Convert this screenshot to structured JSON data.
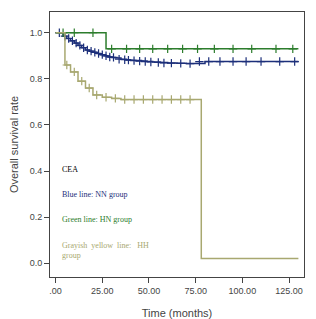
{
  "chart_data": {
    "type": "line",
    "xlabel": "Time (months)",
    "ylabel": "Overall survival rate",
    "xlim": [
      -3,
      133
    ],
    "ylim": [
      -0.06,
      1.09
    ],
    "xticks": [
      {
        "value": 0,
        "label": ".00"
      },
      {
        "value": 25,
        "label": "25.00"
      },
      {
        "value": 50,
        "label": "50.00"
      },
      {
        "value": 75,
        "label": "75.00"
      },
      {
        "value": 100,
        "label": "100.00"
      },
      {
        "value": 125,
        "label": "125.00"
      }
    ],
    "yticks": [
      {
        "value": 0.0,
        "label": "0.0"
      },
      0.2,
      0.4,
      0.6,
      0.8,
      {
        "value": 1.0,
        "label": "1.0"
      }
    ],
    "grid": false,
    "series": [
      {
        "type": "line",
        "line_style": "step",
        "color": "#1c2f7a",
        "x": [
          0,
          4,
          6,
          8,
          10,
          12,
          14,
          16,
          18,
          20,
          22,
          24,
          26,
          28,
          30,
          32,
          35,
          38,
          40,
          43,
          46,
          49,
          52,
          56,
          60,
          65,
          70,
          75,
          80,
          130
        ],
        "values": [
          1.0,
          0.985,
          0.975,
          0.965,
          0.955,
          0.945,
          0.935,
          0.925,
          0.92,
          0.915,
          0.91,
          0.905,
          0.9,
          0.895,
          0.893,
          0.89,
          0.885,
          0.883,
          0.881,
          0.879,
          0.877,
          0.875,
          0.873,
          0.871,
          0.869,
          0.868,
          0.867,
          0.866,
          0.875,
          0.875
        ]
      },
      {
        "type": "scatter",
        "marker": "cross",
        "color": "#1c2f7a",
        "x": [
          2,
          5,
          7,
          9,
          11,
          13,
          15,
          17,
          19,
          21,
          23,
          25,
          27,
          29,
          31,
          34,
          37,
          39,
          42,
          45,
          48,
          51,
          55,
          58,
          62,
          67,
          72,
          77,
          82,
          88,
          95,
          102,
          110,
          120,
          128
        ],
        "values": [
          1.0,
          0.985,
          0.975,
          0.965,
          0.955,
          0.945,
          0.935,
          0.925,
          0.92,
          0.915,
          0.91,
          0.905,
          0.9,
          0.895,
          0.893,
          0.885,
          0.883,
          0.881,
          0.879,
          0.877,
          0.875,
          0.873,
          0.871,
          0.869,
          0.868,
          0.867,
          0.866,
          0.875,
          0.875,
          0.875,
          0.875,
          0.875,
          0.875,
          0.875,
          0.875
        ]
      },
      {
        "type": "line",
        "line_style": "step",
        "color": "#2d7d2d",
        "x": [
          0,
          7,
          27,
          130
        ],
        "values": [
          1.0,
          1.0,
          0.93,
          0.93
        ]
      },
      {
        "type": "scatter",
        "marker": "cross",
        "color": "#2d7d2d",
        "x": [
          4,
          10,
          20,
          30,
          38,
          45,
          52,
          60,
          68,
          76,
          85,
          95,
          105,
          118,
          127
        ],
        "values": [
          1.0,
          1.0,
          1.0,
          0.93,
          0.93,
          0.93,
          0.93,
          0.93,
          0.93,
          0.93,
          0.93,
          0.93,
          0.93,
          0.93,
          0.93
        ]
      },
      {
        "type": "line",
        "line_style": "step",
        "color": "#a8a870",
        "x": [
          0,
          5,
          8,
          12,
          16,
          20,
          25,
          30,
          35,
          40,
          45,
          50,
          55,
          60,
          65,
          70,
          75,
          78,
          130
        ],
        "values": [
          1.0,
          0.86,
          0.83,
          0.79,
          0.76,
          0.73,
          0.72,
          0.715,
          0.71,
          0.71,
          0.71,
          0.71,
          0.71,
          0.71,
          0.71,
          0.71,
          0.71,
          0.02,
          0.02
        ]
      },
      {
        "type": "scatter",
        "marker": "cross",
        "color": "#a8a870",
        "x": [
          6,
          10,
          14,
          18,
          22,
          27,
          32,
          37,
          42,
          47,
          52,
          57,
          62,
          67,
          72
        ],
        "values": [
          0.86,
          0.83,
          0.79,
          0.76,
          0.73,
          0.72,
          0.715,
          0.71,
          0.71,
          0.71,
          0.71,
          0.71,
          0.71,
          0.71,
          0.71
        ]
      }
    ],
    "annotations": [
      {
        "text": "CEA",
        "color": "#000000"
      },
      {
        "text": "Blue line: NN group",
        "color": "#1c2f7a"
      },
      {
        "text": "Green line: HN group",
        "color": "#2d7d2d"
      },
      {
        "text": "Grayish  yellow  line:   HH\ngroup",
        "color": "#a8a870"
      }
    ]
  }
}
